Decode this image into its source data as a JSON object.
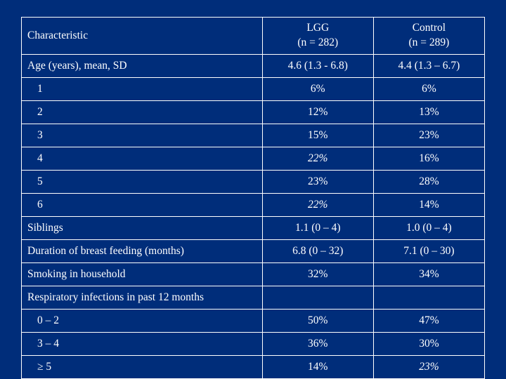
{
  "background_color": "#002d7a",
  "border_color": "#ffffff",
  "text_color": "#ffffff",
  "font_family": "Georgia, serif",
  "table": {
    "type": "table",
    "columns": [
      {
        "label": "Characteristic",
        "align": "left",
        "width_pct": 52
      },
      {
        "label": "LGG",
        "align": "center",
        "width_pct": 24,
        "sub": "(n = 282)"
      },
      {
        "label": "Control",
        "align": "center",
        "width_pct": 24,
        "sub": "(n = 289)"
      }
    ],
    "rows": [
      {
        "c": "Age (years), mean, SD",
        "l": "4.6 (1.3 - 6.8)",
        "r": "4.4 (1.3 – 6.7)",
        "indent": false
      },
      {
        "c": "1",
        "l": "6%",
        "r": "6%",
        "indent": true
      },
      {
        "c": "2",
        "l": "12%",
        "r": "13%",
        "indent": true
      },
      {
        "c": "3",
        "l": "15%",
        "r": "23%",
        "indent": true
      },
      {
        "c": "4",
        "l": "22%",
        "l_ital": true,
        "r": "16%",
        "indent": true
      },
      {
        "c": "5",
        "l": "23%",
        "r": "28%",
        "indent": true
      },
      {
        "c": "6",
        "l": "22%",
        "l_ital": true,
        "r": "14%",
        "indent": true
      },
      {
        "c": "Siblings",
        "l": "1.1 (0 – 4)",
        "r": "1.0 (0 – 4)",
        "indent": false
      },
      {
        "c": "Duration of breast feeding (months)",
        "l": "6.8 (0 – 32)",
        "r": "7.1 (0 – 30)",
        "indent": false
      },
      {
        "c": "Smoking in household",
        "l": "32%",
        "r": "34%",
        "indent": false
      },
      {
        "c": "Respiratory infections in past 12 months",
        "l": "",
        "r": "",
        "indent": false
      },
      {
        "c": "0 – 2",
        "l": "50%",
        "r": "47%",
        "indent": true
      },
      {
        "c": "3 – 4",
        "l": "36%",
        "r": "30%",
        "indent": true
      },
      {
        "c": "≥ 5",
        "l": "14%",
        "r": "23%",
        "r_ital": true,
        "indent": true
      }
    ]
  }
}
